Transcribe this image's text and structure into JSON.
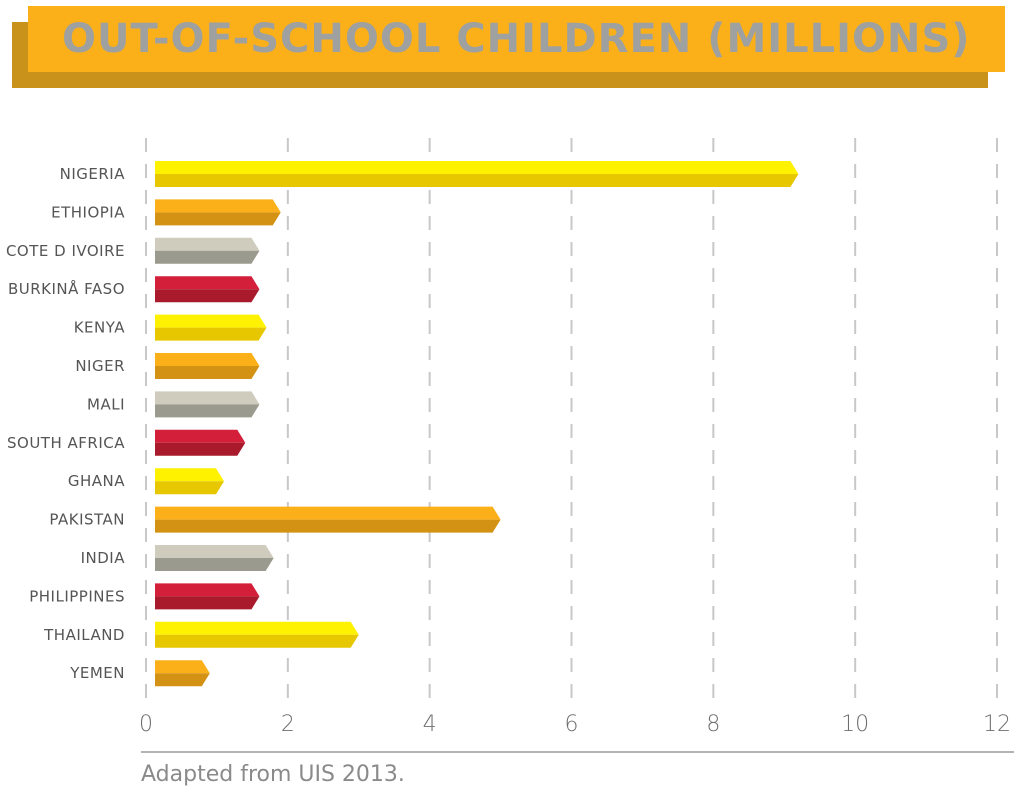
{
  "chart_data": {
    "type": "bar",
    "orientation": "horizontal",
    "title": "OUT-OF-SCHOOL CHILDREN (MILLIONS)",
    "categories": [
      "NIGERIA",
      "ETHIOPIA",
      "COTE D IVOIRE",
      "BURKINÅ FASO",
      "KENYA",
      "NIGER",
      "MALI",
      "SOUTH AFRICA",
      "GHANA",
      "PAKISTAN",
      "INDIA",
      "PHILIPPINES",
      "THAILAND",
      "YEMEN"
    ],
    "values": [
      9.2,
      1.9,
      1.6,
      1.6,
      1.7,
      1.6,
      1.6,
      1.4,
      1.1,
      5.0,
      1.8,
      1.6,
      3.0,
      0.9
    ],
    "bar_colors": [
      "yellow",
      "orange",
      "gray",
      "red",
      "yellow",
      "orange",
      "gray",
      "red",
      "yellow",
      "orange",
      "gray",
      "red",
      "yellow",
      "orange"
    ],
    "xlim": [
      0,
      12
    ],
    "xticks": [
      0,
      2,
      4,
      6,
      8,
      10,
      12
    ],
    "grid": true,
    "xlabel": "",
    "ylabel": ""
  },
  "palette": {
    "yellow": [
      "#fff200",
      "#e6c700"
    ],
    "orange": [
      "#fbb01a",
      "#d49214"
    ],
    "gray": [
      "#cfccbd",
      "#9a9a8e"
    ],
    "red": [
      "#d41f3a",
      "#a81a2c"
    ],
    "banner": "#fbb01a",
    "banner_shadow": "#c9921a",
    "title_text": "#9fa0a0"
  },
  "source": "Adapted from UIS 2013."
}
